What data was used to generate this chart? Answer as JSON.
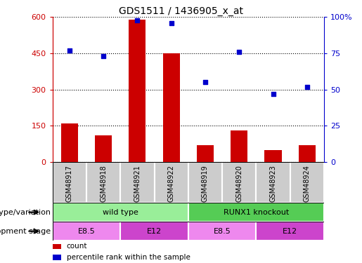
{
  "title": "GDS1511 / 1436905_x_at",
  "samples": [
    "GSM48917",
    "GSM48918",
    "GSM48921",
    "GSM48922",
    "GSM48919",
    "GSM48920",
    "GSM48923",
    "GSM48924"
  ],
  "counts": [
    160,
    110,
    590,
    450,
    70,
    130,
    50,
    70
  ],
  "percentiles": [
    77,
    73,
    98,
    96,
    55,
    76,
    47,
    52
  ],
  "ylim_left": [
    0,
    600
  ],
  "ylim_right": [
    0,
    100
  ],
  "yticks_left": [
    0,
    150,
    300,
    450,
    600
  ],
  "yticks_right": [
    0,
    25,
    50,
    75,
    100
  ],
  "bar_color": "#cc0000",
  "dot_color": "#0000cc",
  "bar_width": 0.5,
  "genotype_groups": [
    {
      "label": "wild type",
      "start": 0,
      "end": 4,
      "color": "#99ee99"
    },
    {
      "label": "RUNX1 knockout",
      "start": 4,
      "end": 8,
      "color": "#55cc55"
    }
  ],
  "dev_stage_groups": [
    {
      "label": "E8.5",
      "start": 0,
      "end": 2,
      "color": "#ee88ee"
    },
    {
      "label": "E12",
      "start": 2,
      "end": 4,
      "color": "#cc44cc"
    },
    {
      "label": "E8.5",
      "start": 4,
      "end": 6,
      "color": "#ee88ee"
    },
    {
      "label": "E12",
      "start": 6,
      "end": 8,
      "color": "#cc44cc"
    }
  ],
  "left_tick_color": "#cc0000",
  "right_tick_color": "#0000cc",
  "sample_box_color": "#cccccc",
  "legend_items": [
    {
      "color": "#cc0000",
      "label": "count"
    },
    {
      "color": "#0000cc",
      "label": "percentile rank within the sample"
    }
  ],
  "genotype_label": "genotype/variation",
  "dev_stage_label": "development stage"
}
